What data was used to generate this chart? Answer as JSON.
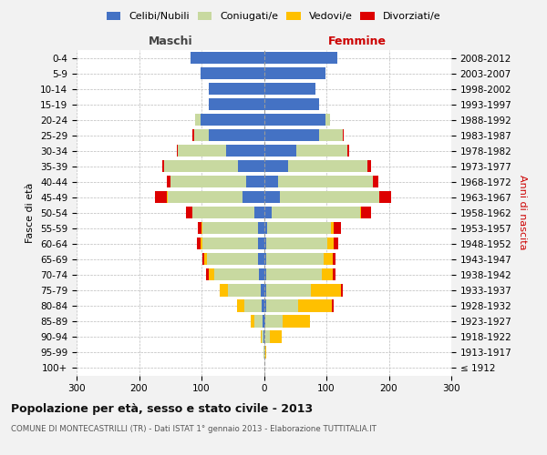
{
  "age_groups": [
    "100+",
    "95-99",
    "90-94",
    "85-89",
    "80-84",
    "75-79",
    "70-74",
    "65-69",
    "60-64",
    "55-59",
    "50-54",
    "45-49",
    "40-44",
    "35-39",
    "30-34",
    "25-29",
    "20-24",
    "15-19",
    "10-14",
    "5-9",
    "0-4"
  ],
  "birth_years": [
    "≤ 1912",
    "1913-1917",
    "1918-1922",
    "1923-1927",
    "1928-1932",
    "1933-1937",
    "1938-1942",
    "1943-1947",
    "1948-1952",
    "1953-1957",
    "1958-1962",
    "1963-1967",
    "1968-1972",
    "1973-1977",
    "1978-1982",
    "1983-1987",
    "1988-1992",
    "1993-1997",
    "1998-2002",
    "2003-2007",
    "2008-2012"
  ],
  "maschi_celibi": [
    0,
    0,
    1,
    2,
    3,
    5,
    8,
    9,
    10,
    10,
    16,
    34,
    28,
    42,
    60,
    88,
    102,
    88,
    88,
    102,
    118
  ],
  "maschi_coniugati": [
    0,
    1,
    3,
    14,
    28,
    52,
    72,
    82,
    88,
    88,
    98,
    120,
    122,
    118,
    78,
    24,
    8,
    0,
    0,
    0,
    0
  ],
  "maschi_vedovi": [
    0,
    0,
    1,
    5,
    12,
    14,
    9,
    4,
    4,
    2,
    1,
    1,
    0,
    0,
    0,
    0,
    0,
    0,
    0,
    0,
    0
  ],
  "maschi_divorziati": [
    0,
    0,
    0,
    0,
    0,
    0,
    4,
    3,
    5,
    6,
    10,
    20,
    5,
    3,
    2,
    2,
    0,
    0,
    0,
    0,
    0
  ],
  "femmine_nubili": [
    0,
    0,
    1,
    2,
    3,
    3,
    4,
    4,
    4,
    5,
    12,
    26,
    22,
    38,
    52,
    88,
    98,
    88,
    82,
    98,
    118
  ],
  "femmine_coniugate": [
    0,
    2,
    8,
    28,
    52,
    72,
    88,
    92,
    98,
    102,
    142,
    158,
    152,
    128,
    82,
    38,
    8,
    0,
    0,
    0,
    0
  ],
  "femmine_vedove": [
    1,
    2,
    20,
    44,
    54,
    48,
    18,
    14,
    9,
    5,
    2,
    1,
    0,
    0,
    0,
    0,
    0,
    0,
    0,
    0,
    0
  ],
  "femmine_divorziate": [
    0,
    0,
    0,
    0,
    2,
    4,
    5,
    5,
    8,
    12,
    15,
    18,
    9,
    5,
    2,
    2,
    0,
    0,
    0,
    0,
    0
  ],
  "colors": {
    "celibi": "#4472c4",
    "coniugati": "#c8d9a0",
    "vedovi": "#ffc000",
    "divorziati": "#dd0000"
  },
  "xlim": 300,
  "title": "Popolazione per età, sesso e stato civile - 2013",
  "subtitle": "COMUNE DI MONTECASTRILLI (TR) - Dati ISTAT 1° gennaio 2013 - Elaborazione TUTTITALIA.IT",
  "ylabel_left": "Fasce di età",
  "ylabel_right": "Anni di nascita",
  "legend_labels": [
    "Celibi/Nubili",
    "Coniugati/e",
    "Vedovi/e",
    "Divorziati/e"
  ],
  "bg_color": "#f2f2f2",
  "plot_bg": "#ffffff",
  "maschi_label": "Maschi",
  "femmine_label": "Femmine"
}
